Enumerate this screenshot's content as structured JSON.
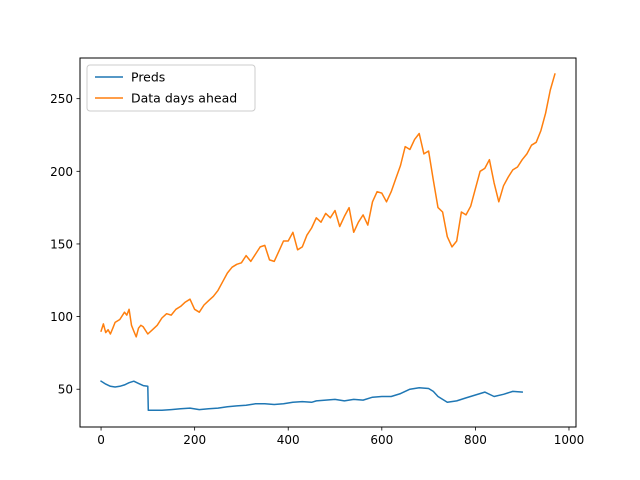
{
  "chart_data": {
    "type": "line",
    "title": "",
    "xlabel": "",
    "ylabel": "",
    "xlim": [
      -45,
      1015
    ],
    "ylim": [
      24,
      278
    ],
    "xticks": [
      0,
      200,
      400,
      600,
      800,
      1000
    ],
    "yticks": [
      50,
      100,
      150,
      200,
      250
    ],
    "grid": false,
    "legend": {
      "placement": "upper-left"
    },
    "series": [
      {
        "name": "Preds",
        "color": "#1f77b4",
        "x": [
          0,
          10,
          20,
          30,
          40,
          50,
          60,
          70,
          80,
          90,
          100,
          101,
          110,
          130,
          150,
          170,
          190,
          210,
          230,
          250,
          270,
          290,
          310,
          330,
          350,
          370,
          390,
          410,
          430,
          450,
          460,
          480,
          500,
          520,
          540,
          560,
          580,
          600,
          620,
          640,
          660,
          680,
          700,
          710,
          720,
          740,
          760,
          780,
          800,
          820,
          840,
          860,
          880,
          900
        ],
        "y": [
          55.5,
          53.5,
          52,
          51.5,
          52,
          53,
          54.5,
          55.5,
          54,
          52.5,
          52,
          35.5,
          35.5,
          35.5,
          36,
          36.5,
          37,
          36,
          36.5,
          37,
          38,
          38.5,
          39,
          40,
          40,
          39.5,
          40,
          41,
          41.5,
          41,
          42,
          42.5,
          43,
          42,
          43,
          42.5,
          44.5,
          45,
          45,
          47,
          50,
          51,
          50.5,
          48.5,
          45,
          41,
          42,
          44,
          46,
          48,
          45,
          46.5,
          48.5,
          48
        ]
      },
      {
        "name": "Data days ahead",
        "color": "#ff7f0e",
        "x": [
          0,
          5,
          10,
          15,
          20,
          25,
          30,
          40,
          50,
          55,
          60,
          65,
          70,
          75,
          80,
          85,
          90,
          100,
          110,
          120,
          130,
          140,
          150,
          160,
          170,
          180,
          190,
          200,
          210,
          220,
          230,
          240,
          250,
          260,
          270,
          280,
          290,
          300,
          310,
          320,
          330,
          340,
          350,
          360,
          370,
          380,
          390,
          400,
          410,
          420,
          430,
          440,
          450,
          460,
          470,
          480,
          490,
          500,
          510,
          520,
          530,
          540,
          550,
          560,
          570,
          580,
          590,
          600,
          610,
          620,
          630,
          640,
          650,
          660,
          670,
          680,
          690,
          700,
          710,
          720,
          730,
          740,
          750,
          760,
          770,
          780,
          790,
          800,
          810,
          820,
          830,
          840,
          850,
          860,
          870,
          880,
          890,
          900,
          910,
          920,
          930,
          940,
          950,
          960,
          970
        ],
        "y": [
          90,
          95,
          89,
          91,
          88,
          92,
          96,
          98,
          103,
          101,
          105,
          94,
          90,
          86,
          92,
          94,
          93,
          88,
          91,
          94,
          99,
          102,
          101,
          105,
          107,
          110,
          112,
          105,
          103,
          108,
          111,
          114,
          118,
          124,
          130,
          134,
          136,
          137,
          142,
          138,
          143,
          148,
          149,
          139,
          138,
          145,
          152,
          152,
          158,
          146,
          148,
          156,
          161,
          168,
          165,
          171,
          168,
          173,
          162,
          169,
          175,
          158,
          165,
          170,
          163,
          179,
          186,
          185,
          179,
          186,
          195,
          204,
          217,
          215,
          222,
          226,
          212,
          214,
          194,
          175,
          172,
          155,
          148,
          152,
          172,
          170,
          176,
          188,
          200,
          202,
          208,
          192,
          179,
          190,
          196,
          201,
          203,
          208,
          212,
          218,
          220,
          228,
          240,
          256,
          267
        ]
      }
    ]
  }
}
